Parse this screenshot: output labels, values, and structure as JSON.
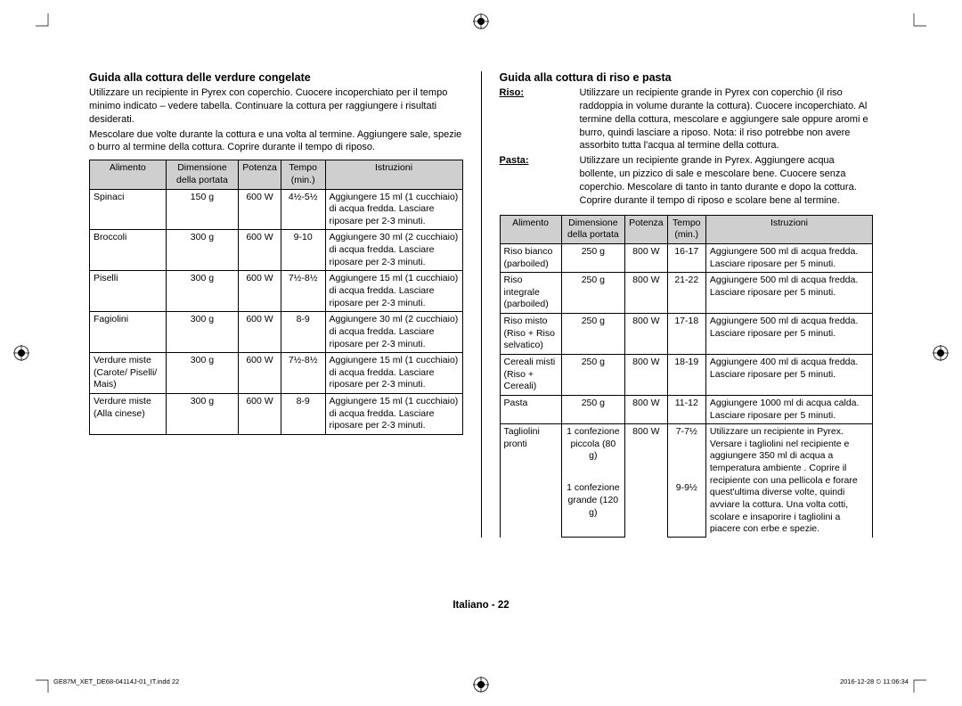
{
  "left": {
    "heading": "Guida alla cottura delle verdure congelate",
    "intro1": "Utilizzare un recipiente in Pyrex con coperchio. Cuocere incoperchiato per il tempo minimo indicato – vedere tabella. Continuare la cottura per raggiungere i risultati desiderati.",
    "intro2": "Mescolare due volte durante la cottura e una volta al termine. Aggiungere sale, spezie o burro al termine della cottura. Coprire durante il tempo di riposo.",
    "headers": [
      "Alimento",
      "Dimensione della portata",
      "Potenza",
      "Tempo (min.)",
      "Istruzioni"
    ],
    "rows": [
      {
        "food": "Spinaci",
        "size": "150 g",
        "power": "600 W",
        "time": "4½-5½",
        "instr": "Aggiungere 15 ml (1 cucchiaio) di acqua fredda. Lasciare riposare per 2-3 minuti."
      },
      {
        "food": "Broccoli",
        "size": "300 g",
        "power": "600 W",
        "time": "9-10",
        "instr": "Aggiungere 30 ml (2 cucchiaio) di acqua fredda. Lasciare riposare per 2-3 minuti."
      },
      {
        "food": "Piselli",
        "size": "300 g",
        "power": "600 W",
        "time": "7½-8½",
        "instr": "Aggiungere 15 ml (1 cucchiaio) di acqua fredda. Lasciare riposare per 2-3 minuti."
      },
      {
        "food": "Fagiolini",
        "size": "300 g",
        "power": "600 W",
        "time": "8-9",
        "instr": "Aggiungere 30 ml (2 cucchiaio) di acqua fredda. Lasciare riposare per 2-3 minuti."
      },
      {
        "food": "Verdure miste (Carote/ Piselli/ Mais)",
        "size": "300 g",
        "power": "600 W",
        "time": "7½-8½",
        "instr": "Aggiungere 15 ml (1 cucchiaio) di acqua fredda. Lasciare riposare per 2-3 minuti."
      },
      {
        "food": "Verdure miste (Alla cinese)",
        "size": "300 g",
        "power": "600 W",
        "time": "8-9",
        "instr": "Aggiungere 15 ml (1 cucchiaio) di acqua fredda. Lasciare riposare per 2-3 minuti."
      }
    ]
  },
  "right": {
    "heading": "Guida alla cottura di riso e pasta",
    "riso_label": "Riso:",
    "riso_text": "Utilizzare un recipiente grande in Pyrex con coperchio (il riso raddoppia in volume durante la cottura). Cuocere incoperchiato. Al termine della cottura, mescolare e aggiungere sale oppure aromi e burro, quindi lasciare a riposo. Nota: il riso potrebbe non avere assorbito tutta l'acqua al termine della cottura.",
    "pasta_label": "Pasta:",
    "pasta_text": "Utilizzare un recipiente grande in Pyrex. Aggiungere acqua bollente, un pizzico di sale e mescolare bene. Cuocere senza coperchio. Mescolare di tanto in tanto durante e dopo la cottura. Coprire durante il tempo di riposo e scolare bene al termine.",
    "headers": [
      "Alimento",
      "Dimensione della portata",
      "Potenza",
      "Tempo (min.)",
      "Istruzioni"
    ],
    "rows": [
      {
        "food": "Riso bianco (parboiled)",
        "size": "250 g",
        "power": "800 W",
        "time": "16-17",
        "instr": "Aggiungere 500 ml di acqua fredda. Lasciare riposare per 5 minuti."
      },
      {
        "food": "Riso integrale (parboiled)",
        "size": "250 g",
        "power": "800 W",
        "time": "21-22",
        "instr": "Aggiungere 500 ml di acqua fredda. Lasciare riposare per 5 minuti."
      },
      {
        "food": "Riso misto (Riso + Riso selvatico)",
        "size": "250 g",
        "power": "800 W",
        "time": "17-18",
        "instr": "Aggiungere 500 ml di acqua fredda. Lasciare riposare per 5 minuti."
      },
      {
        "food": "Cereali misti (Riso + Cereali)",
        "size": "250 g",
        "power": "800 W",
        "time": "18-19",
        "instr": "Aggiungere 400 ml di acqua fredda. Lasciare riposare per 5 minuti."
      },
      {
        "food": "Pasta",
        "size": "250 g",
        "power": "800 W",
        "time": "11-12",
        "instr": "Aggiungere 1000 ml di acqua calda. Lasciare riposare per 5 minuti."
      }
    ],
    "tagliolini": {
      "food": "Tagliolini pronti",
      "size1": "1 confezione piccola (80 g)",
      "power": "800 W",
      "time1": "7-7½",
      "size2": "1 confezione grande (120 g)",
      "time2": "9-9½",
      "instr": "Utilizzare un recipiente in Pyrex. Versare i tagliolini nel recipiente e aggiungere 350 ml di acqua a temperatura ambiente . Coprire il recipiente con una pellicola e forare quest'ultima diverse volte, quindi avviare la cottura. Una volta cotti, scolare e insaporire i tagliolini a piacere con erbe e spezie."
    }
  },
  "footer": "Italiano - 22",
  "meta_left": "GE87M_XET_DE68-04114J-01_IT.indd   22",
  "meta_right": "2016-12-28   ⏲ 11:06:34"
}
